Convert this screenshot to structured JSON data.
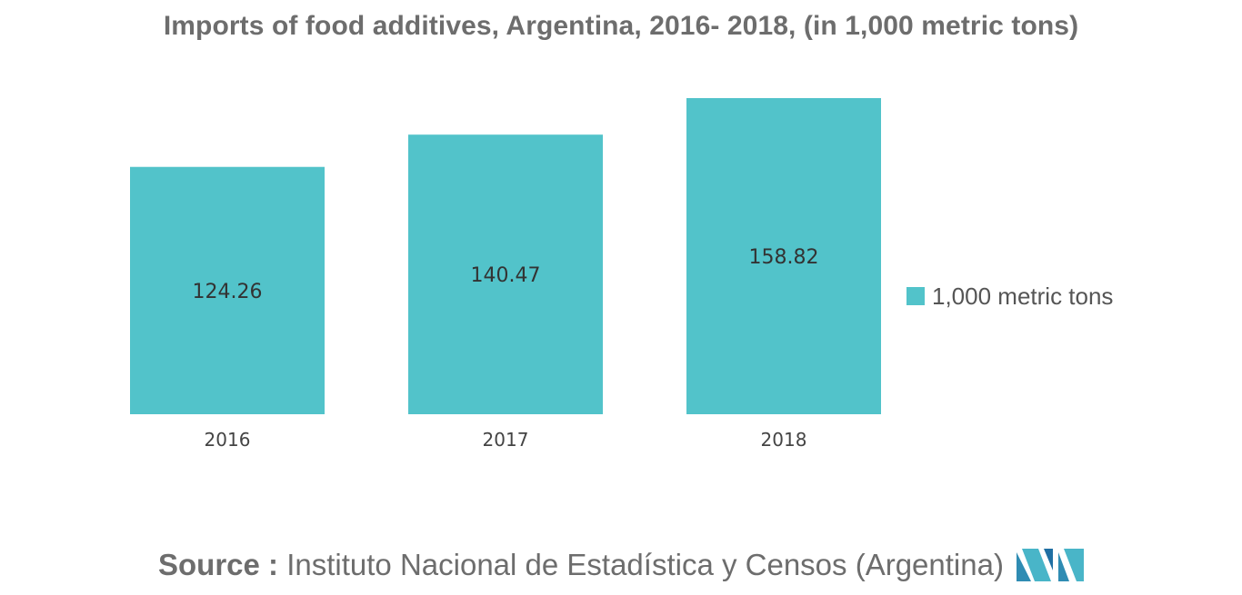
{
  "title": "Imports of food additives, Argentina, 2016- 2018, (in 1,000 metric tons)",
  "source": {
    "label": "Source :",
    "text": "Instituto Nacional de Estadística y Censos (Argentina)"
  },
  "logo": {
    "icon": "mordor-intelligence-logo-icon",
    "colors": [
      "#1f6fa3",
      "#49b5c8",
      "#2f8cb3"
    ]
  },
  "colors": {
    "bar": "#52c3ca",
    "text": "#6d6d6d",
    "label": "#333333"
  },
  "chart_data": {
    "type": "bar",
    "title": "Imports of food additives, Argentina, 2016- 2018, (in 1,000 metric tons)",
    "categories": [
      "2016",
      "2017",
      "2018"
    ],
    "series": [
      {
        "name": "1,000 metric tons",
        "values": [
          124.26,
          140.47,
          158.82
        ],
        "color": "#52c3ca"
      }
    ],
    "data_labels": [
      "124.26",
      "140.47",
      "158.82"
    ],
    "xlabel": "",
    "ylabel": "",
    "ylim": [
      0,
      158.82
    ],
    "grid": false,
    "legend": "right",
    "axis_visible": false
  }
}
